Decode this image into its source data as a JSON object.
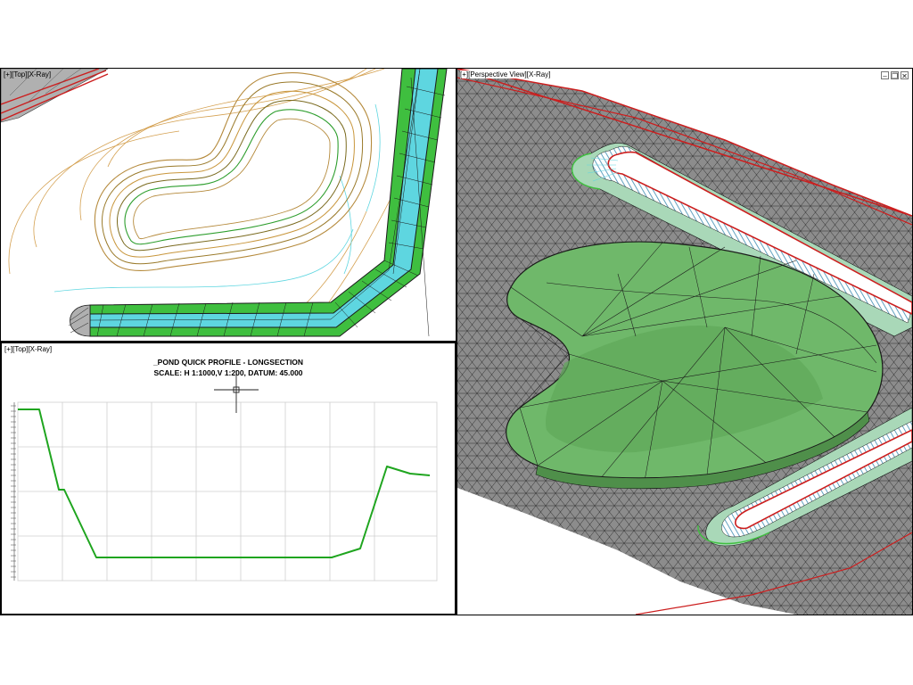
{
  "viewports": {
    "top": {
      "label": "[+][Top][X-Ray]"
    },
    "profile": {
      "label": "[+][Top][X-Ray]",
      "title": "_POND QUICK PROFILE - LONGSECTION",
      "subtitle": "SCALE: H 1:1000,V 1:200, DATUM: 45.000"
    },
    "view3d": {
      "label": "[+][Perspective View][X-Ray]",
      "controls": [
        "–",
        "❐",
        "✕"
      ]
    }
  },
  "colors": {
    "contour": "#c8963c",
    "contour_dark": "#7a6a1e",
    "water": "#5ed6e0",
    "green": "#3fbf3f",
    "mesh": "#1a1a1a",
    "profile_line": "#1fa51f",
    "boundary_red": "#cc1e1e",
    "terrain": "#8c8c8c",
    "pond_fill": "#6fb86a"
  }
}
